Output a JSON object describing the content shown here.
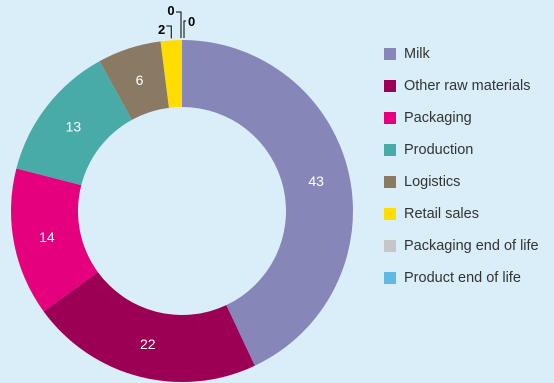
{
  "chart_data": {
    "type": "pie",
    "title": "",
    "categories": [
      "Milk",
      "Other raw materials",
      "Packaging",
      "Production",
      "Logistics",
      "Retail sales",
      "Packaging end of life",
      "Product end of life"
    ],
    "values": [
      43,
      22,
      14,
      13,
      6,
      2,
      0,
      0
    ],
    "colors": [
      "#8786b8",
      "#9b0055",
      "#e5007e",
      "#49aba8",
      "#8a7a63",
      "#ffdd00",
      "#c6c6c6",
      "#62b8e4"
    ],
    "value_labels": [
      "43",
      "22",
      "14",
      "13",
      "6",
      "2",
      "0",
      "0"
    ],
    "legend_position": "right",
    "donut": true
  }
}
